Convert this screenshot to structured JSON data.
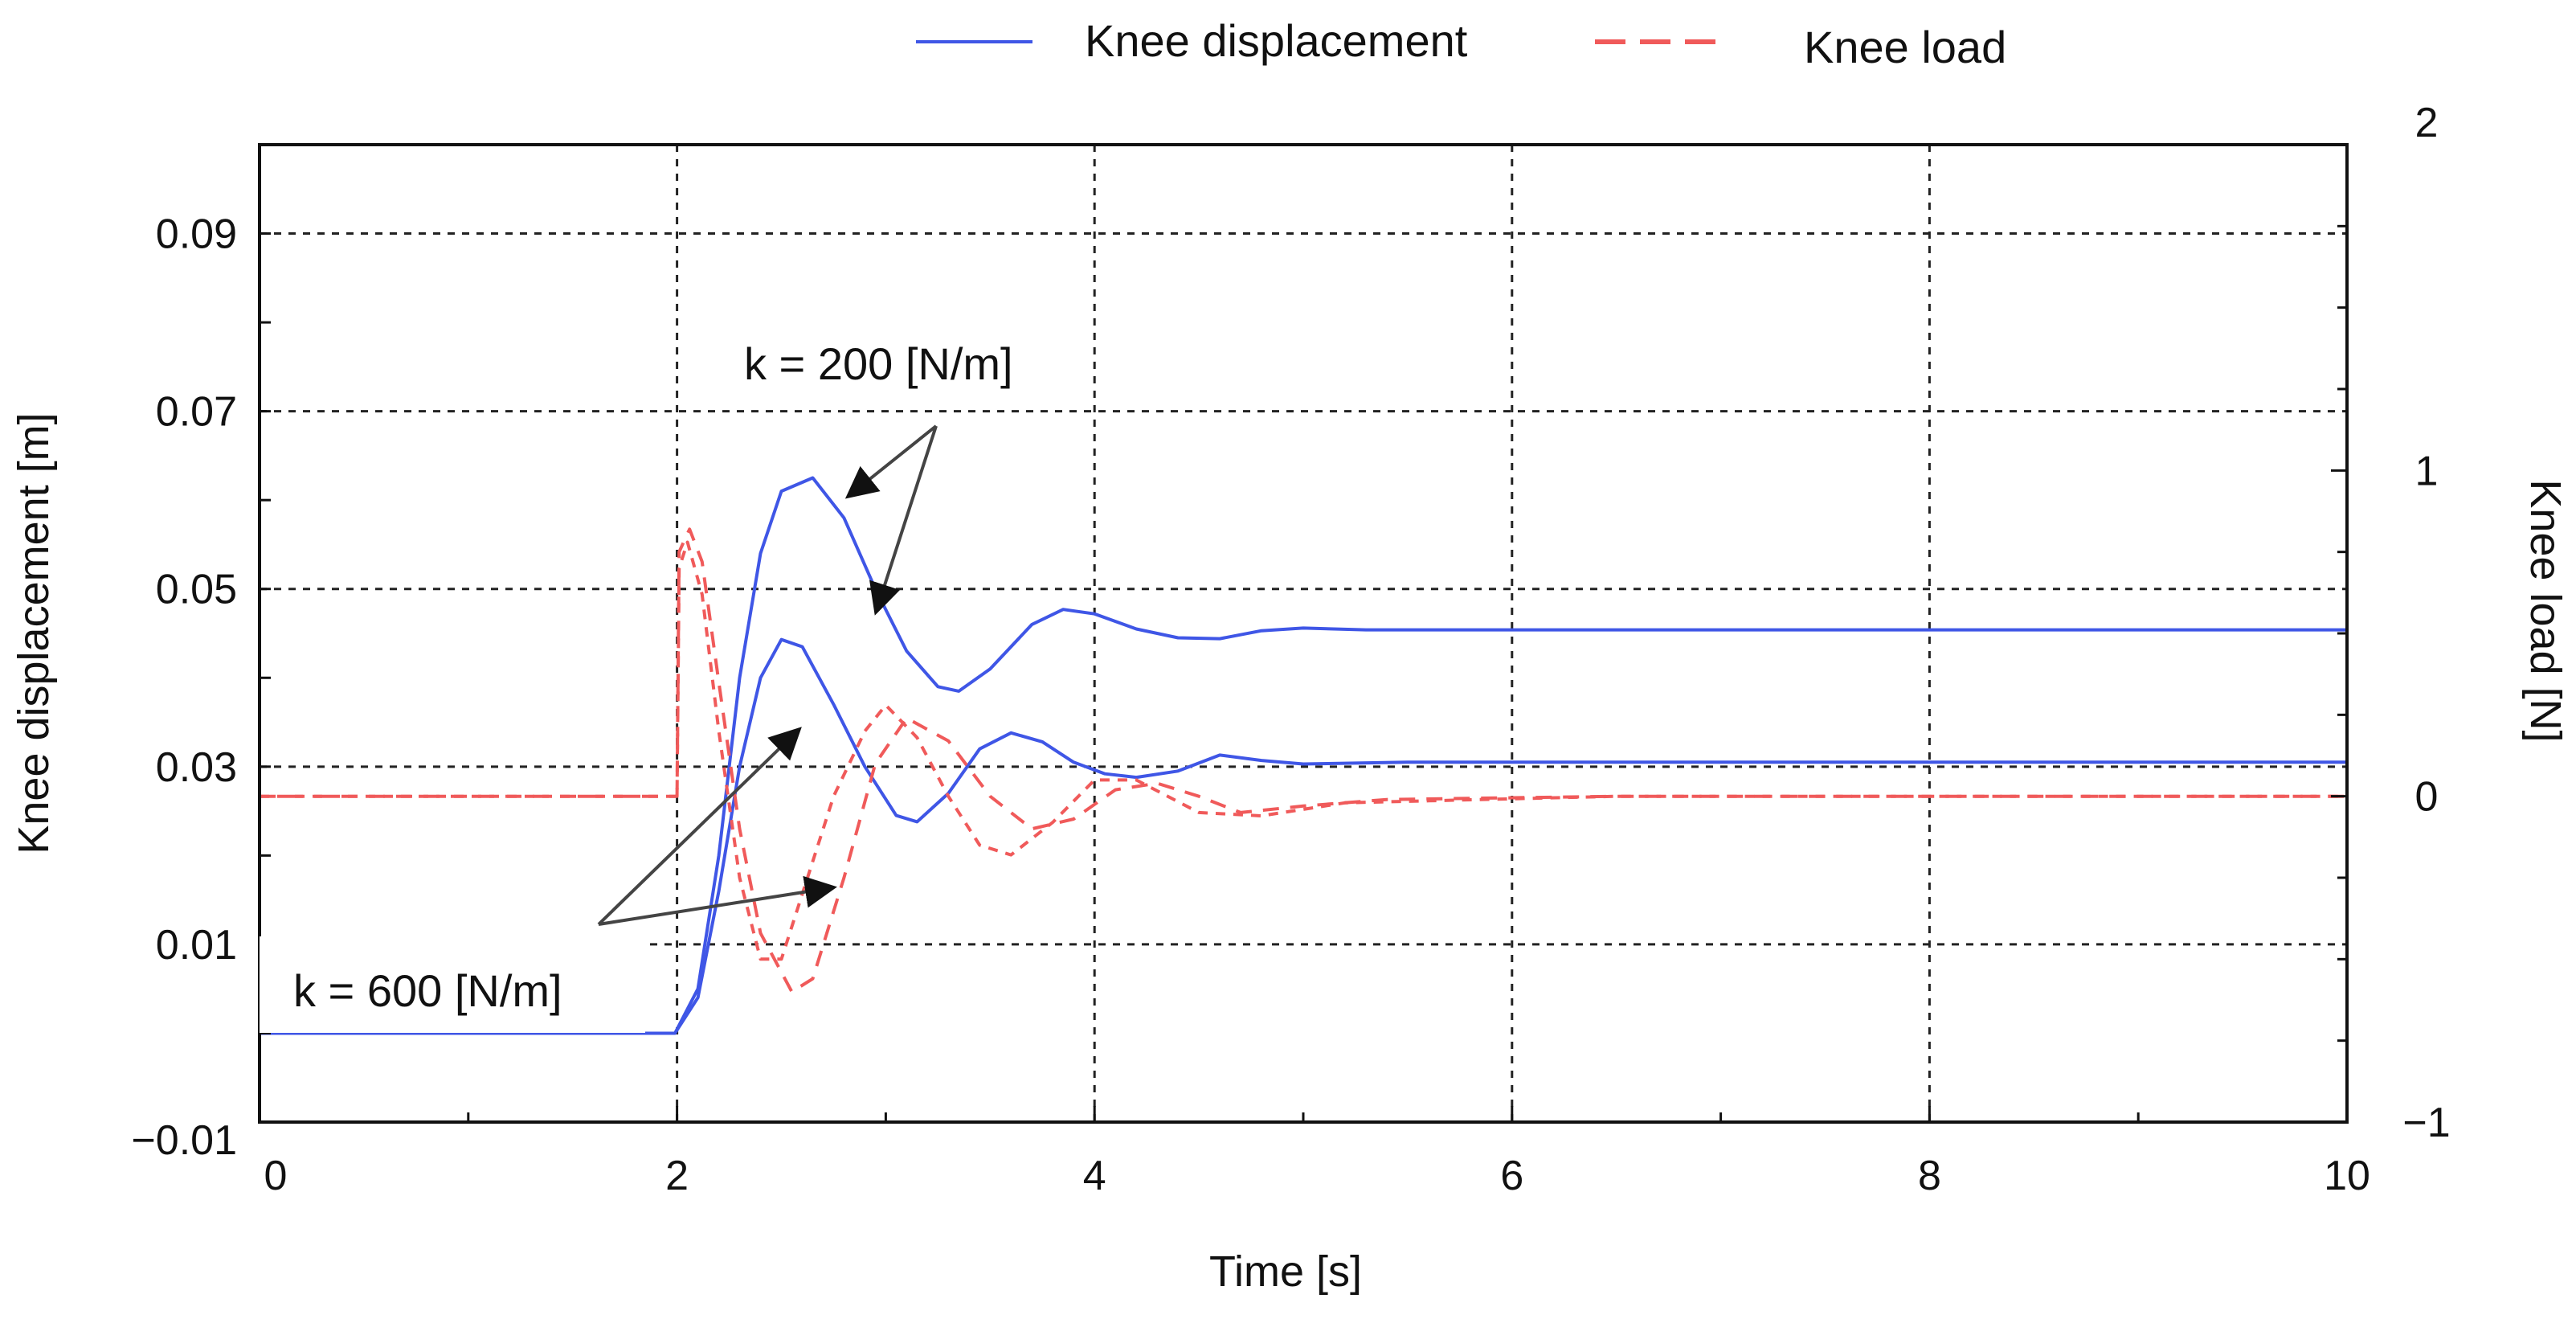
{
  "chart_data": {
    "type": "line",
    "title": "",
    "xlabel": "Time [s]",
    "ylabel": "Knee displacement [m]",
    "y2label": "Knee load [N]",
    "xlim": [
      0,
      10
    ],
    "ylim": [
      -0.01,
      0.1
    ],
    "y2lim": [
      -1,
      2
    ],
    "x_ticks": [
      "0",
      "2",
      "4",
      "6",
      "8",
      "10"
    ],
    "y_ticks": [
      "−0.01",
      "0.01",
      "0.03",
      "0.05",
      "0.07",
      "0.09"
    ],
    "y2_ticks": [
      "−1",
      "0",
      "1",
      "2"
    ],
    "grid": true,
    "legend": {
      "position": "top-center",
      "entries": [
        {
          "label": "Knee displacement",
          "color": "#3f56e6",
          "style": "solid"
        },
        {
          "label": "Knee load",
          "color": "#f05a5a",
          "style": "dashed"
        }
      ]
    },
    "annotations": [
      {
        "text": "k = 200 [N/m]",
        "points_to": "displacement and load peaks of the k = 200 curves"
      },
      {
        "text": "k = 600 [N/m]",
        "points_to": "displacement and load peaks of the k = 600 curves"
      }
    ],
    "series": [
      {
        "name": "Knee displacement (k = 200 [N/m])",
        "axis": "left",
        "color": "#3f56e6",
        "dash": "",
        "points": [
          [
            0,
            0.0
          ],
          [
            1.99,
            0.0
          ],
          [
            2.1,
            0.005
          ],
          [
            2.2,
            0.02
          ],
          [
            2.3,
            0.04
          ],
          [
            2.4,
            0.054
          ],
          [
            2.5,
            0.061
          ],
          [
            2.65,
            0.0625
          ],
          [
            2.8,
            0.058
          ],
          [
            2.95,
            0.05
          ],
          [
            3.1,
            0.043
          ],
          [
            3.25,
            0.039
          ],
          [
            3.35,
            0.0385
          ],
          [
            3.5,
            0.041
          ],
          [
            3.7,
            0.046
          ],
          [
            3.85,
            0.0477
          ],
          [
            4.0,
            0.0472
          ],
          [
            4.2,
            0.0455
          ],
          [
            4.4,
            0.0445
          ],
          [
            4.6,
            0.0444
          ],
          [
            4.8,
            0.0453
          ],
          [
            5.0,
            0.0456
          ],
          [
            5.3,
            0.0454
          ],
          [
            10,
            0.0454
          ]
        ]
      },
      {
        "name": "Knee displacement (k = 600 [N/m])",
        "axis": "left",
        "color": "#3f56e6",
        "dash": "",
        "points": [
          [
            0,
            0.0
          ],
          [
            1.99,
            0.0
          ],
          [
            2.1,
            0.004
          ],
          [
            2.2,
            0.016
          ],
          [
            2.3,
            0.03
          ],
          [
            2.4,
            0.04
          ],
          [
            2.5,
            0.0443
          ],
          [
            2.6,
            0.0435
          ],
          [
            2.75,
            0.037
          ],
          [
            2.9,
            0.03
          ],
          [
            3.05,
            0.0245
          ],
          [
            3.15,
            0.0238
          ],
          [
            3.3,
            0.027
          ],
          [
            3.45,
            0.032
          ],
          [
            3.6,
            0.0338
          ],
          [
            3.75,
            0.0328
          ],
          [
            3.9,
            0.0305
          ],
          [
            4.05,
            0.0292
          ],
          [
            4.2,
            0.0288
          ],
          [
            4.4,
            0.0295
          ],
          [
            4.6,
            0.0313
          ],
          [
            4.8,
            0.0307
          ],
          [
            5.0,
            0.0303
          ],
          [
            5.5,
            0.0305
          ],
          [
            10,
            0.0305
          ]
        ]
      },
      {
        "name": "Knee load (k = 200 [N/m])",
        "axis": "right",
        "color": "#f05a5a",
        "dash": "20 14",
        "points": [
          [
            0,
            0.0
          ],
          [
            2.0,
            0.0
          ],
          [
            2.01,
            0.75
          ],
          [
            2.06,
            0.82
          ],
          [
            2.12,
            0.72
          ],
          [
            2.2,
            0.35
          ],
          [
            2.3,
            -0.1
          ],
          [
            2.4,
            -0.42
          ],
          [
            2.55,
            -0.6
          ],
          [
            2.65,
            -0.56
          ],
          [
            2.8,
            -0.25
          ],
          [
            2.95,
            0.1
          ],
          [
            3.1,
            0.24
          ],
          [
            3.3,
            0.17
          ],
          [
            3.5,
            0.0
          ],
          [
            3.7,
            -0.1
          ],
          [
            3.9,
            -0.07
          ],
          [
            4.1,
            0.02
          ],
          [
            4.3,
            0.04
          ],
          [
            4.5,
            0.0
          ],
          [
            4.7,
            -0.05
          ],
          [
            5.0,
            -0.03
          ],
          [
            5.4,
            -0.01
          ],
          [
            6.5,
            0.0
          ],
          [
            10,
            0.0
          ]
        ]
      },
      {
        "name": "Knee load (k = 600 [N/m])",
        "axis": "right",
        "color": "#f05a5a",
        "dash": "12 10",
        "points": [
          [
            0,
            0.0
          ],
          [
            2.0,
            0.0
          ],
          [
            2.01,
            0.7
          ],
          [
            2.05,
            0.78
          ],
          [
            2.12,
            0.62
          ],
          [
            2.2,
            0.2
          ],
          [
            2.3,
            -0.25
          ],
          [
            2.4,
            -0.5
          ],
          [
            2.5,
            -0.5
          ],
          [
            2.6,
            -0.3
          ],
          [
            2.75,
            0.0
          ],
          [
            2.9,
            0.2
          ],
          [
            3.0,
            0.28
          ],
          [
            3.15,
            0.18
          ],
          [
            3.3,
            0.0
          ],
          [
            3.45,
            -0.15
          ],
          [
            3.6,
            -0.18
          ],
          [
            3.8,
            -0.08
          ],
          [
            4.0,
            0.05
          ],
          [
            4.2,
            0.05
          ],
          [
            4.5,
            -0.05
          ],
          [
            4.8,
            -0.06
          ],
          [
            5.2,
            -0.02
          ],
          [
            6.5,
            0.0
          ],
          [
            10,
            0.0
          ]
        ]
      }
    ]
  }
}
